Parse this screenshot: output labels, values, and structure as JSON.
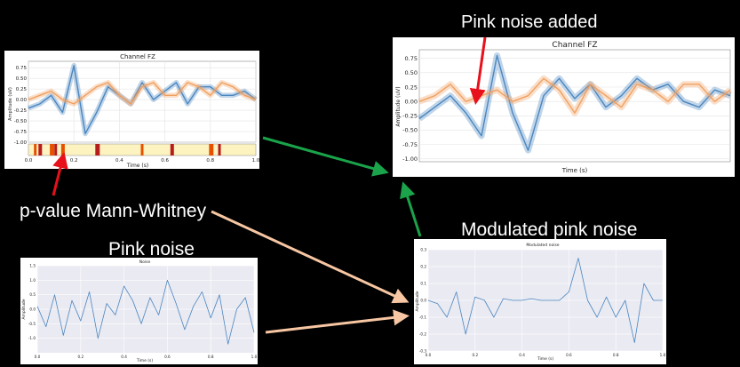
{
  "labels": {
    "pink_noise_added": "Pink noise added",
    "p_value": "p-value Mann-Whitney",
    "pink_noise": "Pink noise",
    "modulated_pink_noise": "Modulated pink noise"
  },
  "colors": {
    "background": "#000000",
    "blue_series": "#4a86c0",
    "orange_series": "#f0a060",
    "red_arrow": "#e8101a",
    "green_arrow": "#1aa34a",
    "peach_arrow": "#f7c6a3",
    "seaborn_bg": "#eaeaf2"
  },
  "chart_data": [
    {
      "id": "channel-fz-small",
      "type": "line",
      "title": "Channel FZ",
      "xlabel": "Time (s)",
      "ylabel": "Amplitude (uV)",
      "xlim": [
        0,
        1.0
      ],
      "ylim": [
        -1.0,
        0.9
      ],
      "xticks": [
        "0.0",
        "0.2",
        "0.4",
        "0.6",
        "0.8",
        "1.0"
      ],
      "yticks": [
        "0.75",
        "0.50",
        "0.25",
        "0.00",
        "-0.25",
        "-0.50",
        "-0.75",
        "-1.00"
      ],
      "x": [
        0,
        0.05,
        0.1,
        0.15,
        0.2,
        0.25,
        0.3,
        0.35,
        0.4,
        0.45,
        0.5,
        0.55,
        0.6,
        0.65,
        0.7,
        0.75,
        0.8,
        0.85,
        0.9,
        0.95,
        1.0
      ],
      "series": [
        {
          "values": [
            -0.2,
            -0.1,
            0.1,
            -0.3,
            0.8,
            -0.8,
            -0.3,
            0.3,
            0.1,
            -0.1,
            0.4,
            0.0,
            0.2,
            0.4,
            -0.1,
            0.3,
            0.3,
            0.1,
            0.1,
            0.2,
            0.0
          ]
        },
        {
          "values": [
            0.0,
            0.1,
            0.2,
            0.0,
            -0.1,
            0.1,
            0.3,
            0.4,
            0.1,
            -0.1,
            0.3,
            0.4,
            0.1,
            0.1,
            0.4,
            0.3,
            0.1,
            0.4,
            0.3,
            0.1,
            0.0
          ]
        }
      ],
      "pvalue_bars": [
        0.03,
        0.05,
        0.1,
        0.12,
        0.15,
        0.3,
        0.5,
        0.63,
        0.8,
        0.84
      ]
    },
    {
      "id": "channel-fz-large",
      "type": "line",
      "title": "Channel FZ",
      "xlabel": "Time (s)",
      "ylabel": "Amplitude (uV)",
      "ylim": [
        -1.05,
        0.9
      ],
      "yticks": [
        "0.75",
        "0.50",
        "0.25",
        "0.00",
        "-0.25",
        "-0.50",
        "-0.75",
        "-1.00"
      ],
      "x": [
        0,
        0.05,
        0.1,
        0.15,
        0.2,
        0.25,
        0.3,
        0.35,
        0.4,
        0.45,
        0.5,
        0.55,
        0.6,
        0.65,
        0.7,
        0.75,
        0.8,
        0.85,
        0.9,
        0.95,
        1.0
      ],
      "series": [
        {
          "values": [
            -0.3,
            -0.1,
            0.1,
            -0.2,
            -0.6,
            0.8,
            -0.2,
            -0.85,
            0.1,
            0.4,
            0.05,
            0.3,
            -0.1,
            0.1,
            0.4,
            0.2,
            0.3,
            0.0,
            -0.1,
            0.2,
            0.1
          ]
        },
        {
          "values": [
            0.0,
            0.1,
            0.3,
            0.0,
            0.1,
            0.2,
            0.0,
            0.1,
            0.4,
            0.2,
            -0.2,
            0.3,
            0.1,
            -0.1,
            0.3,
            0.2,
            0.0,
            0.3,
            0.3,
            0.0,
            0.2
          ]
        }
      ]
    },
    {
      "id": "pink-noise",
      "type": "line",
      "title": "Noise",
      "xlabel": "Time (s)",
      "ylabel": "Amplitude",
      "ylim": [
        -1.5,
        1.5
      ],
      "yticks": [
        "1.5",
        "1.0",
        "0.5",
        "0.0",
        "-0.5",
        "-1.0"
      ],
      "xticks": [
        "0.0",
        "0.2",
        "0.4",
        "0.6",
        "0.8",
        "1.0"
      ],
      "x": [
        0,
        0.04,
        0.08,
        0.12,
        0.16,
        0.2,
        0.24,
        0.28,
        0.32,
        0.36,
        0.4,
        0.44,
        0.48,
        0.52,
        0.56,
        0.6,
        0.64,
        0.68,
        0.72,
        0.76,
        0.8,
        0.84,
        0.88,
        0.92,
        0.96,
        1.0
      ],
      "series": [
        {
          "values": [
            0.1,
            -0.6,
            0.5,
            -0.9,
            0.3,
            -0.4,
            0.6,
            -1.0,
            0.2,
            -0.2,
            0.8,
            0.3,
            -0.5,
            0.4,
            -0.2,
            1.0,
            0.2,
            -0.7,
            0.1,
            0.6,
            -0.3,
            0.5,
            -1.2,
            0.0,
            0.4,
            -0.8
          ]
        }
      ]
    },
    {
      "id": "modulated-noise",
      "type": "line",
      "title": "Modulated noise",
      "xlabel": "Time (s)",
      "ylabel": "Amplitude",
      "ylim": [
        -0.3,
        0.3
      ],
      "yticks": [
        "0.3",
        "0.2",
        "0.1",
        "0.0",
        "-0.1",
        "-0.2",
        "-0.3"
      ],
      "xticks": [
        "0.0",
        "0.2",
        "0.4",
        "0.6",
        "0.8",
        "1.0"
      ],
      "x": [
        0,
        0.04,
        0.08,
        0.12,
        0.16,
        0.2,
        0.24,
        0.28,
        0.32,
        0.36,
        0.4,
        0.44,
        0.48,
        0.52,
        0.56,
        0.6,
        0.64,
        0.68,
        0.72,
        0.76,
        0.8,
        0.84,
        0.88,
        0.92,
        0.96,
        1.0
      ],
      "series": [
        {
          "values": [
            0.0,
            -0.02,
            -0.1,
            0.05,
            -0.2,
            0.02,
            0.0,
            -0.1,
            0.01,
            0.0,
            0.0,
            0.01,
            0.0,
            0.0,
            0.0,
            0.05,
            0.25,
            0.0,
            -0.1,
            0.02,
            -0.1,
            0.0,
            -0.25,
            0.1,
            0.0,
            0.0
          ]
        }
      ]
    }
  ]
}
